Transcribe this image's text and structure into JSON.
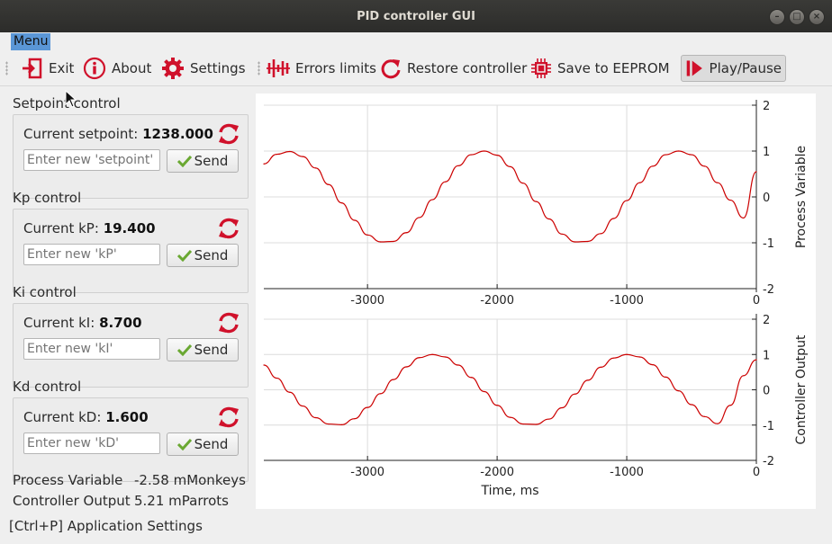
{
  "window": {
    "title": "PID controller GUI"
  },
  "menubar": {
    "menu_label": "Menu"
  },
  "toolbar": {
    "exit": "Exit",
    "about": "About",
    "settings": "Settings",
    "errors_limits": "Errors limits",
    "restore_controller": "Restore controller",
    "save_to_eeprom": "Save to EEPROM",
    "play_pause": "Play/Pause"
  },
  "controls": [
    {
      "title": "Setpoint control",
      "current_label": "Current setpoint:",
      "current_value": "1238.000",
      "placeholder": "Enter new 'setpoint'",
      "send_label": "Send"
    },
    {
      "title": "Kp control",
      "current_label": "Current kP:",
      "current_value": "19.400",
      "placeholder": "Enter new 'kP'",
      "send_label": "Send"
    },
    {
      "title": "Ki control",
      "current_label": "Current kI:",
      "current_value": "8.700",
      "placeholder": "Enter new 'kI'",
      "send_label": "Send"
    },
    {
      "title": "Kd control",
      "current_label": "Current kD:",
      "current_value": "1.600",
      "placeholder": "Enter new 'kD'",
      "send_label": "Send"
    }
  ],
  "readouts": {
    "pv_label": "Process Variable",
    "pv_value": "-2.58 mMonkeys",
    "co_label": "Controller Output",
    "co_value": "5.21 mParrots"
  },
  "statusbar": {
    "text": "[Ctrl+P] Application Settings"
  },
  "chart_data": [
    {
      "type": "line",
      "ylabel": "Process Variable",
      "xlabel": "",
      "xlim": [
        -3800,
        0
      ],
      "ylim": [
        -2,
        2
      ],
      "x_ticks": [
        -3000,
        -2000,
        -1000,
        0
      ],
      "y_ticks": [
        -2,
        -1,
        0,
        1,
        2
      ],
      "grid": true,
      "color": "#cc0000",
      "series": [
        {
          "x": [
            -3800,
            -3700,
            -3600,
            -3500,
            -3400,
            -3300,
            -3200,
            -3100,
            -3000,
            -2900,
            -2800,
            -2700,
            -2600,
            -2500,
            -2400,
            -2300,
            -2200,
            -2100,
            -2000,
            -1900,
            -1800,
            -1700,
            -1600,
            -1500,
            -1400,
            -1300,
            -1200,
            -1100,
            -1000,
            -900,
            -800,
            -700,
            -600,
            -500,
            -400,
            -300,
            -200,
            -100,
            0
          ],
          "y": [
            0.72,
            0.93,
            0.99,
            0.88,
            0.63,
            0.27,
            -0.13,
            -0.51,
            -0.83,
            -0.98,
            -0.97,
            -0.78,
            -0.45,
            -0.06,
            0.33,
            0.68,
            0.92,
            1.0,
            0.91,
            0.66,
            0.3,
            -0.1,
            -0.48,
            -0.81,
            -0.98,
            -0.97,
            -0.8,
            -0.47,
            -0.08,
            0.31,
            0.67,
            0.92,
            1.0,
            0.92,
            0.67,
            0.31,
            -0.07,
            -0.46,
            0.55
          ]
        }
      ]
    },
    {
      "type": "line",
      "ylabel": "Controller Output",
      "xlabel": "Time, ms",
      "xlim": [
        -3800,
        0
      ],
      "ylim": [
        -2,
        2
      ],
      "x_ticks": [
        -3000,
        -2000,
        -1000,
        0
      ],
      "y_ticks": [
        -2,
        -1,
        0,
        1,
        2
      ],
      "grid": true,
      "color": "#cc0000",
      "series": [
        {
          "x": [
            -3800,
            -3700,
            -3600,
            -3500,
            -3400,
            -3300,
            -3200,
            -3100,
            -3000,
            -2900,
            -2800,
            -2700,
            -2600,
            -2500,
            -2400,
            -2300,
            -2200,
            -2100,
            -2000,
            -1900,
            -1800,
            -1700,
            -1600,
            -1500,
            -1400,
            -1300,
            -1200,
            -1100,
            -1000,
            -900,
            -800,
            -700,
            -600,
            -500,
            -400,
            -300,
            -200,
            -100,
            0
          ],
          "y": [
            0.7,
            0.33,
            -0.07,
            -0.46,
            -0.79,
            -0.97,
            -0.99,
            -0.82,
            -0.5,
            -0.11,
            0.29,
            0.65,
            0.91,
            1.0,
            0.93,
            0.7,
            0.35,
            -0.05,
            -0.44,
            -0.78,
            -0.97,
            -0.98,
            -0.83,
            -0.51,
            -0.12,
            0.27,
            0.64,
            0.9,
            1.0,
            0.93,
            0.71,
            0.36,
            -0.03,
            -0.42,
            -0.76,
            -0.96,
            -0.44,
            0.4,
            0.85
          ]
        }
      ]
    }
  ]
}
